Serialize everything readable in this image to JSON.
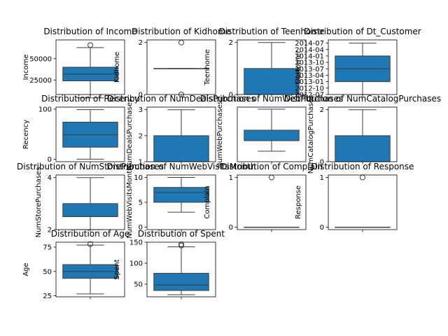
{
  "colors": {
    "box_fill": "#1f77b4",
    "line": "#3d3d3d",
    "frame": "#000000"
  },
  "chart_data": [
    {
      "type": "box",
      "title": "Distribution of Income",
      "ylabel": "Income",
      "ylim": [
        8000,
        72000
      ],
      "yticks": [
        {
          "label": "25000",
          "value": 25000
        },
        {
          "label": "50000",
          "value": 50000
        }
      ],
      "box": {
        "q1": 24000,
        "median": 32000,
        "q3": 40000,
        "whislo": 4000,
        "whishi": 63000,
        "fliers": [
          66000
        ]
      }
    },
    {
      "type": "box",
      "title": "Distribution of Kidhome",
      "ylabel": "Kidhome",
      "ylim": [
        0,
        2.1
      ],
      "yticks": [
        {
          "label": "0",
          "value": 0
        },
        {
          "label": "2",
          "value": 2
        }
      ],
      "box": {
        "q1": 1,
        "median": 1,
        "q3": 1,
        "whislo": 1,
        "whishi": 1,
        "fliers": [
          0,
          2
        ]
      }
    },
    {
      "type": "box",
      "title": "Distribution of Teenhome",
      "ylabel": "Teenhome",
      "ylim": [
        0,
        2.1
      ],
      "yticks": [
        {
          "label": "0",
          "value": 0
        },
        {
          "label": "2",
          "value": 2
        }
      ],
      "box": {
        "q1": 0,
        "median": 0,
        "q3": 1,
        "whislo": 0,
        "whishi": 2,
        "fliers": []
      }
    },
    {
      "type": "box",
      "title": "Distribution of Dt_Customer",
      "ylabel": "Customer",
      "ylim": [
        0,
        25.5
      ],
      "yticks": [
        {
          "label": "2012-07",
          "value": 0
        },
        {
          "label": "2012-10",
          "value": 3
        },
        {
          "label": "2013-01",
          "value": 6
        },
        {
          "label": "2013-04",
          "value": 9
        },
        {
          "label": "2013-07",
          "value": 12
        },
        {
          "label": "2013-10",
          "value": 15
        },
        {
          "label": "2014-01",
          "value": 18
        },
        {
          "label": "2014-04",
          "value": 21
        },
        {
          "label": "2014-07",
          "value": 24
        }
      ],
      "box": {
        "q1": 6,
        "median": 12,
        "q3": 18,
        "whislo": 0,
        "whishi": 24,
        "fliers": []
      }
    },
    {
      "type": "box",
      "title": "Distribution of Recency",
      "ylabel": "Recency",
      "ylim": [
        -5,
        104
      ],
      "yticks": [
        {
          "label": "0",
          "value": 0
        },
        {
          "label": "100",
          "value": 100
        }
      ],
      "box": {
        "q1": 24,
        "median": 49,
        "q3": 74,
        "whislo": 0,
        "whishi": 99,
        "fliers": []
      }
    },
    {
      "type": "box",
      "title": "Distribution of NumDealsPurchases",
      "ylabel": "NumDealsPurchases",
      "ylim": [
        1,
        3.1
      ],
      "yticks": [
        {
          "label": "1",
          "value": 1
        },
        {
          "label": "2",
          "value": 2
        },
        {
          "label": "3",
          "value": 3
        }
      ],
      "box": {
        "q1": 1,
        "median": 1,
        "q3": 2,
        "whislo": 1,
        "whishi": 3,
        "fliers": []
      }
    },
    {
      "type": "box",
      "title": "Distribution of NumWebPurchases",
      "ylabel": "NumWebPurchases",
      "ylim": [
        0.5,
        3.1
      ],
      "yticks": [],
      "box": {
        "q1": 1.5,
        "median": 2,
        "q3": 2,
        "whislo": 1,
        "whishi": 3,
        "fliers": []
      }
    },
    {
      "type": "box",
      "title": "Distribution of NumCatalogPurchases",
      "ylabel": "NumCatalogPurchases",
      "ylim": [
        0,
        2.1
      ],
      "yticks": [
        {
          "label": "0",
          "value": 0
        },
        {
          "label": "2",
          "value": 2
        }
      ],
      "box": {
        "q1": 0,
        "median": 0,
        "q3": 1,
        "whislo": 0,
        "whishi": 2,
        "fliers": []
      }
    },
    {
      "type": "box",
      "title": "Distribution of NumStorePurchases",
      "ylabel": "NumStorePurchases",
      "ylim": [
        2,
        4.1
      ],
      "yticks": [
        {
          "label": "2",
          "value": 2
        },
        {
          "label": "4",
          "value": 4
        }
      ],
      "box": {
        "q1": 2.5,
        "median": 2.5,
        "q3": 3,
        "whislo": 2,
        "whishi": 4,
        "fliers": []
      }
    },
    {
      "type": "box",
      "title": "Distribution of NumWebVisitsMonth",
      "ylabel": "NumWebVisitsMonth",
      "ylim": [
        -0.5,
        10.5
      ],
      "yticks": [
        {
          "label": "0",
          "value": 0
        },
        {
          "label": "5",
          "value": 5
        },
        {
          "label": "10",
          "value": 10
        }
      ],
      "box": {
        "q1": 5,
        "median": 7,
        "q3": 8,
        "whislo": 3,
        "whishi": 10,
        "fliers": []
      }
    },
    {
      "type": "box",
      "title": "Distribution of Complain",
      "ylabel": "Complain",
      "ylim": [
        -0.05,
        1.05
      ],
      "yticks": [
        {
          "label": "0",
          "value": 0
        },
        {
          "label": "1",
          "value": 1
        }
      ],
      "box": {
        "q1": 0,
        "median": 0,
        "q3": 0,
        "whislo": 0,
        "whishi": 0,
        "fliers": [
          1
        ]
      }
    },
    {
      "type": "box",
      "title": "Distribution of Response",
      "ylabel": "Response",
      "ylim": [
        -0.05,
        1.05
      ],
      "yticks": [
        {
          "label": "0",
          "value": 0
        },
        {
          "label": "1",
          "value": 1
        }
      ],
      "box": {
        "q1": 0,
        "median": 0,
        "q3": 0,
        "whislo": 0,
        "whishi": 0,
        "fliers": [
          1
        ]
      }
    },
    {
      "type": "box",
      "title": "Distribution of Age",
      "ylabel": "Age",
      "ylim": [
        24,
        80
      ],
      "yticks": [
        {
          "label": "25",
          "value": 25
        },
        {
          "label": "50",
          "value": 50
        },
        {
          "label": "75",
          "value": 75
        }
      ],
      "box": {
        "q1": 43,
        "median": 50,
        "q3": 57,
        "whislo": 27,
        "whishi": 77,
        "fliers": [
          78
        ]
      }
    },
    {
      "type": "box",
      "title": "Distribution of Spent",
      "ylabel": "Spent",
      "ylim": [
        20,
        150
      ],
      "yticks": [
        {
          "label": "50",
          "value": 50
        },
        {
          "label": "100",
          "value": 100
        },
        {
          "label": "150",
          "value": 150
        }
      ],
      "box": {
        "q1": 35,
        "median": 48,
        "q3": 76,
        "whislo": 25,
        "whishi": 139,
        "fliers": [
          142,
          145
        ]
      }
    }
  ]
}
